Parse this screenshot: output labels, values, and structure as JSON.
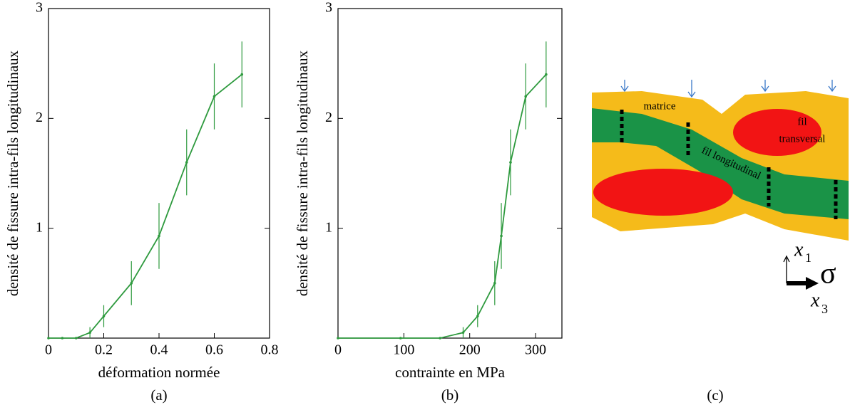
{
  "chart_data": [
    {
      "type": "line",
      "y_label": "densité de fissure intra-fils longitudinaux",
      "x_label": "déformation normée",
      "caption": "(a)",
      "x": [
        0,
        0.05,
        0.1,
        0.15,
        0.2,
        0.3,
        0.4,
        0.5,
        0.6,
        0.7
      ],
      "values": [
        0,
        0,
        0,
        0.05,
        0.2,
        0.5,
        0.93,
        1.6,
        2.2,
        2.4
      ],
      "errors": [
        0,
        0,
        0,
        0.05,
        0.1,
        0.2,
        0.3,
        0.3,
        0.3,
        0.3
      ],
      "color": "#2e9a3e",
      "xlim": [
        0,
        0.8
      ],
      "xticks": [
        0,
        0.2,
        0.4,
        0.6,
        0.8
      ],
      "ylim": [
        0,
        3
      ],
      "yticks": [
        1,
        2,
        3
      ]
    },
    {
      "type": "line",
      "y_label": "densité de fissure intra-fils longitudinaux",
      "x_label": "contrainte en MPa",
      "caption": "(b)",
      "x": [
        0,
        95,
        155,
        190,
        212,
        238,
        248,
        262,
        285,
        316
      ],
      "values": [
        0,
        0,
        0,
        0.05,
        0.2,
        0.5,
        0.93,
        1.6,
        2.2,
        2.4
      ],
      "errors": [
        0,
        0,
        0,
        0.05,
        0.1,
        0.2,
        0.3,
        0.3,
        0.3,
        0.3
      ],
      "color": "#2e9a3e",
      "xlim": [
        0,
        340
      ],
      "xticks": [
        0,
        100,
        200,
        300
      ],
      "ylim": [
        0,
        3
      ],
      "yticks": [
        1,
        2,
        3
      ]
    }
  ],
  "diagram": {
    "matrix_label": "matrice",
    "transverse_label": [
      "fil",
      "transversal"
    ],
    "longitudinal_label": "fil longitudinal",
    "axis_1": "x",
    "axis_1_sub": "1",
    "axis_3": "x",
    "axis_3_sub": "3",
    "stress": "σ",
    "caption": "(c)"
  }
}
